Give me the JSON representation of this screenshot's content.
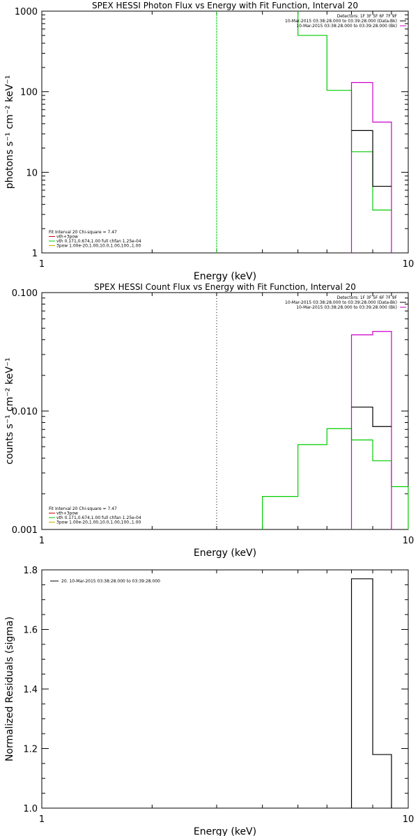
{
  "chart_data": [
    {
      "type": "line",
      "title": "SPEX HESSI Photon Flux vs Energy with Fit Function, Interval 20",
      "xlabel": "Energy (keV)",
      "ylabel": "photons s⁻¹ cm⁻² keV⁻¹",
      "xscale": "log",
      "yscale": "log",
      "xlim": [
        1,
        10
      ],
      "ylim": [
        1,
        1000
      ],
      "x_ticks": [
        {
          "value": 1,
          "label": "1"
        },
        {
          "value": 10,
          "label": "10"
        }
      ],
      "y_ticks": [
        {
          "value": 1,
          "label": "1"
        },
        {
          "value": 10,
          "label": "10"
        },
        {
          "value": 100,
          "label": "100"
        },
        {
          "value": 1000,
          "label": "1000"
        }
      ],
      "vline": {
        "x": 3.0,
        "style": "dashed",
        "color": "#00cc00"
      },
      "legend_top_right": [
        {
          "text": "Detectors: 1F 3F 5F 6F 7F 9F",
          "color": ""
        },
        {
          "text": "10-Mar-2015 03:38:28.000 to 03:39:28.000 (Data-Bk)",
          "color": "#000000"
        },
        {
          "text": "10-Mar-2015 03:38:28.000 to 03:39:28.000 (Bk)",
          "color": "#cc00cc"
        }
      ],
      "legend_bottom_left": [
        {
          "text": "Fit Interval 20   Chi-square = 7.47",
          "color": ""
        },
        {
          "text": "vth+3pow",
          "color": "#cc0000"
        },
        {
          "text": "vth 0.171,0.674,1.00  full chfan 1.25e-04",
          "color": "#00cc00"
        },
        {
          "text": "3pow 1.00e-20,1.00,10.0,1.00,100.,1.00",
          "color": "#ccaa00"
        }
      ],
      "series": [
        {
          "color": "#00cc00",
          "edges": [
            5,
            6,
            7,
            8,
            9
          ],
          "values": [
            500,
            104,
            18,
            3.4
          ],
          "left_rise_to": 1000
        },
        {
          "color": "#cc00cc",
          "edges": [
            7,
            8,
            9
          ],
          "values": [
            130,
            42
          ],
          "drop_to_bottom": true
        },
        {
          "color": "#000000",
          "edges": [
            7,
            8,
            9
          ],
          "values": [
            33,
            6.7
          ]
        }
      ]
    },
    {
      "type": "line",
      "title": "SPEX HESSI Count Flux vs Energy with Fit Function, Interval 20",
      "xlabel": "Energy (keV)",
      "ylabel": "counts s⁻¹ cm⁻² keV⁻¹",
      "xscale": "log",
      "yscale": "log",
      "xlim": [
        1,
        10
      ],
      "ylim": [
        0.001,
        0.1
      ],
      "x_ticks": [
        {
          "value": 1,
          "label": "1"
        },
        {
          "value": 10,
          "label": "10"
        }
      ],
      "y_ticks": [
        {
          "value": 0.001,
          "label": "0.001"
        },
        {
          "value": 0.01,
          "label": "0.010"
        },
        {
          "value": 0.1,
          "label": "0.100"
        }
      ],
      "vline": {
        "x": 3.0,
        "style": "dotted",
        "color": "#000000"
      },
      "legend_top_right": [
        {
          "text": "Detectors: 1F 3F 5F 6F 7F 9F",
          "color": ""
        },
        {
          "text": "10-Mar-2015 03:38:28.000 to 03:39:28.000 (Data-Bk)",
          "color": "#000000"
        },
        {
          "text": "10-Mar-2015 03:38:28.000 to 03:39:28.000 (Bk)",
          "color": "#cc00cc"
        }
      ],
      "legend_bottom_left": [
        {
          "text": "Fit Interval 20   Chi-square = 7.47",
          "color": ""
        },
        {
          "text": "vth+3pow",
          "color": "#cc0000"
        },
        {
          "text": "vth 0.171,0.674,1.00  full chfan 1.25e-04",
          "color": "#00cc00"
        },
        {
          "text": "3pow 1.00e-20,1.00,10.0,1.00,100.,1.00",
          "color": "#ccaa00"
        }
      ],
      "series": [
        {
          "color": "#00cc00",
          "edges": [
            4,
            5,
            6,
            7,
            8,
            9,
            10
          ],
          "values": [
            0.0019,
            0.0052,
            0.0071,
            0.0057,
            0.0038,
            0.0023
          ],
          "drop_to_bottom": true
        },
        {
          "color": "#cc00cc",
          "edges": [
            7,
            8,
            9
          ],
          "values": [
            0.044,
            0.047
          ],
          "drop_to_bottom": true
        },
        {
          "color": "#000000",
          "edges": [
            7,
            8,
            9
          ],
          "values": [
            0.0108,
            0.0074
          ]
        }
      ]
    },
    {
      "type": "line",
      "title": "",
      "xlabel": "Energy (keV)",
      "ylabel": "Normalized Residuals (sigma)",
      "xscale": "log",
      "yscale": "linear",
      "xlim": [
        1,
        10
      ],
      "ylim": [
        1.0,
        1.8
      ],
      "x_ticks": [
        {
          "value": 1,
          "label": "1"
        },
        {
          "value": 10,
          "label": "10"
        }
      ],
      "y_ticks": [
        {
          "value": 1.0,
          "label": "1.0"
        },
        {
          "value": 1.2,
          "label": "1.2"
        },
        {
          "value": 1.4,
          "label": "1.4"
        },
        {
          "value": 1.6,
          "label": "1.6"
        },
        {
          "value": 1.8,
          "label": "1.8"
        }
      ],
      "legend_top_left": [
        {
          "text": "20. 10-Mar-2015 03:38:28.000 to 03:39:28.000",
          "color": "#000000"
        }
      ],
      "series": [
        {
          "color": "#000000",
          "edges": [
            7,
            8,
            9
          ],
          "values": [
            1.77,
            1.18
          ],
          "drop_to_bottom": true
        }
      ]
    }
  ]
}
